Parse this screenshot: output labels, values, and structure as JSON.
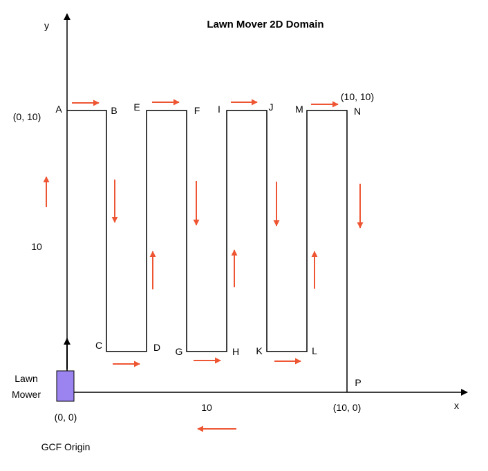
{
  "title": "Lawn Mover 2D Domain",
  "axes": {
    "x_label": "x",
    "y_label": "y"
  },
  "mower": {
    "label_line1": "Lawn",
    "label_line2": "Mower",
    "color": "#9b84f0"
  },
  "origin": {
    "coord": "(0, 0)",
    "caption": "GCF Origin"
  },
  "coords": {
    "top_left": "(0, 10)",
    "top_right": "(10, 10)",
    "bottom_right": "(10, 0)"
  },
  "dimensions": {
    "height": "10",
    "width": "10"
  },
  "points": {
    "A": "A",
    "B": "B",
    "C": "C",
    "D": "D",
    "E": "E",
    "F": "F",
    "G": "G",
    "H": "H",
    "I": "I",
    "J": "J",
    "K": "K",
    "L": "L",
    "M": "M",
    "N": "N",
    "P": "P"
  },
  "colors": {
    "path": "#000000",
    "arrow": "#ee5533",
    "axis": "#000000"
  }
}
